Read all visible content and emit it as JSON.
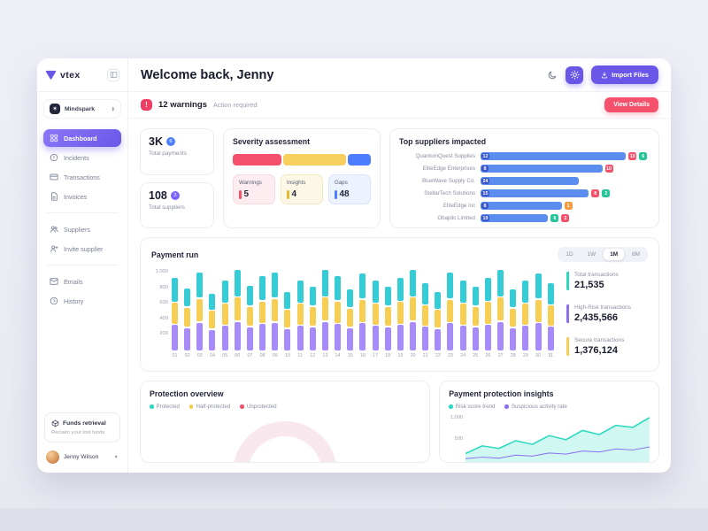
{
  "sidebar": {
    "logo_text": "vtex",
    "workspace": "Mindspark",
    "nav": [
      {
        "label": "Dashboard",
        "icon": "grid-icon",
        "active": true,
        "divider_after": false
      },
      {
        "label": "Incidents",
        "icon": "alert-icon",
        "active": false,
        "divider_after": false
      },
      {
        "label": "Transactions",
        "icon": "card-icon",
        "active": false,
        "divider_after": false
      },
      {
        "label": "Invoices",
        "icon": "file-icon",
        "active": false,
        "divider_after": true
      },
      {
        "label": "Suppliers",
        "icon": "users-icon",
        "active": false,
        "divider_after": false
      },
      {
        "label": "Invite supplier",
        "icon": "user-plus-icon",
        "active": false,
        "divider_after": true
      },
      {
        "label": "Emails",
        "icon": "mail-icon",
        "active": false,
        "divider_after": false
      },
      {
        "label": "History",
        "icon": "clock-icon",
        "active": false,
        "divider_after": false
      }
    ],
    "funds_title": "Funds retrieval",
    "funds_subtitle": "Reclaim your lost funds",
    "user_name": "Jenny Wilson"
  },
  "header": {
    "title": "Welcome back, Jenny",
    "import_label": "Import Files"
  },
  "alert_bar": {
    "warning_count": "12 warnings",
    "action_text": "Action required",
    "details_label": "View Details"
  },
  "stats": [
    {
      "value": "3K",
      "badge": "6",
      "badge_color": "#4d7cfe",
      "label": "Total payments"
    },
    {
      "value": "108",
      "badge": "3",
      "badge_color": "#7b61ff",
      "label": "Total suppliers"
    }
  ],
  "severity": {
    "title": "Severity assessment",
    "bar_segments": [
      {
        "color": "#f4516c",
        "pct": 36
      },
      {
        "color": "#f6cf5d",
        "pct": 47
      },
      {
        "color": "#4d7cfe",
        "pct": 17
      }
    ],
    "items": [
      {
        "label": "Warnings",
        "value": "5",
        "bg": "#fdedf1",
        "border": "#f8d9e1",
        "accent": "#f4516c"
      },
      {
        "label": "Insights",
        "value": "4",
        "bg": "#fdf7e5",
        "border": "#f3e7c2",
        "accent": "#e8b931"
      },
      {
        "label": "Gaps",
        "value": "48",
        "bg": "#edf3fe",
        "border": "#d8e4fb",
        "accent": "#4d7cfe"
      }
    ]
  },
  "top_suppliers": {
    "title": "Top suppliers impacted",
    "rows": [
      {
        "name": "QuantumQuest Supplies",
        "count": "12",
        "bar_pct": 86,
        "badges": [
          {
            "text": "10",
            "color": "#f4516c"
          },
          {
            "text": "6",
            "color": "#27c499"
          }
        ]
      },
      {
        "name": "EliteEdge Enterprises",
        "count": "8",
        "bar_pct": 72,
        "badges": [
          {
            "text": "10",
            "color": "#f4516c"
          }
        ]
      },
      {
        "name": "BlueWave Supply Co.",
        "count": "24",
        "bar_pct": 58,
        "badges": []
      },
      {
        "name": "StellarTech Solutions",
        "count": "15",
        "bar_pct": 64,
        "badges": [
          {
            "text": "8",
            "color": "#f4516c"
          },
          {
            "text": "2",
            "color": "#27c499"
          }
        ]
      },
      {
        "name": "EliteEdge inc",
        "count": "8",
        "bar_pct": 48,
        "badges": [
          {
            "text": "1",
            "color": "#f59a3d"
          }
        ]
      },
      {
        "name": "Obaplic Limited",
        "count": "19",
        "bar_pct": 40,
        "badges": [
          {
            "text": "6",
            "color": "#27c499"
          },
          {
            "text": "2",
            "color": "#f4516c"
          }
        ]
      }
    ]
  },
  "payment_run": {
    "title": "Payment run",
    "ranges": [
      "1D",
      "1W",
      "1M",
      "6M"
    ],
    "active_range": "1M",
    "summary": [
      {
        "label": "Total transactions",
        "value": "21,535",
        "color": "#2bd9c1"
      },
      {
        "label": "High-Risk transactions",
        "value": "2,435,566",
        "color": "#8a6ff0"
      },
      {
        "label": "Secure transactions",
        "value": "1,376,124",
        "color": "#f5ce53"
      }
    ]
  },
  "chart_data": [
    {
      "type": "bar",
      "stacked": true,
      "title": "Payment run",
      "categories": [
        "01",
        "02",
        "03",
        "04",
        "05",
        "06",
        "07",
        "08",
        "09",
        "10",
        "11",
        "12",
        "13",
        "14",
        "15",
        "16",
        "17",
        "18",
        "19",
        "20",
        "21",
        "22",
        "23",
        "24",
        "25",
        "26",
        "27",
        "28",
        "29",
        "30",
        "31"
      ],
      "series": [
        {
          "name": "base",
          "color": "#a78bfa",
          "values": [
            320,
            280,
            350,
            260,
            310,
            360,
            290,
            330,
            350,
            270,
            310,
            290,
            360,
            330,
            280,
            340,
            310,
            290,
            320,
            360,
            300,
            270,
            340,
            310,
            290,
            320,
            360,
            280,
            310,
            340,
            300
          ]
        },
        {
          "name": "mid",
          "color": "#f5ce53",
          "values": [
            260,
            240,
            280,
            220,
            260,
            290,
            240,
            270,
            280,
            220,
            260,
            240,
            290,
            270,
            230,
            280,
            260,
            240,
            270,
            290,
            250,
            220,
            280,
            260,
            240,
            270,
            290,
            230,
            260,
            280,
            250
          ]
        },
        {
          "name": "top",
          "color": "#35ccd6",
          "values": [
            300,
            230,
            320,
            200,
            280,
            330,
            250,
            300,
            320,
            210,
            270,
            240,
            330,
            300,
            220,
            310,
            280,
            240,
            290,
            330,
            260,
            210,
            320,
            280,
            240,
            290,
            330,
            220,
            270,
            310,
            260
          ]
        }
      ],
      "ylim": [
        0,
        1000
      ],
      "yticks": [
        "1,000",
        "800",
        "600",
        "400",
        "200"
      ],
      "legend_position": "none",
      "grid": false
    },
    {
      "type": "area",
      "title": "Payment protection insights",
      "x": [
        1,
        2,
        3,
        4,
        5,
        6,
        7,
        8,
        9,
        10,
        11,
        12
      ],
      "series": [
        {
          "name": "Risk score trend",
          "color": "#2bd9c1",
          "values": [
            250,
            400,
            350,
            500,
            430,
            600,
            520,
            700,
            620,
            800,
            760,
            950
          ]
        },
        {
          "name": "Suspicious activity rate",
          "color": "#8a6ff0",
          "values": [
            150,
            180,
            160,
            220,
            200,
            260,
            240,
            300,
            280,
            340,
            320,
            380
          ]
        }
      ],
      "ylim": [
        0,
        1000
      ],
      "yticks": [
        "1,000",
        "500"
      ],
      "legend_position": "top",
      "grid": false
    }
  ],
  "protection": {
    "title": "Protection overview",
    "legend": [
      {
        "label": "Protected",
        "color": "#2bd9c1"
      },
      {
        "label": "Half-protected",
        "color": "#f5ce53"
      },
      {
        "label": "Unprotected",
        "color": "#f4516c"
      }
    ],
    "ring_color": "#f8e8ee"
  },
  "insights": {
    "title": "Payment protection insights",
    "legend": [
      {
        "label": "Risk score trend",
        "color": "#2bd9c1"
      },
      {
        "label": "Suspicious activity rate",
        "color": "#8a6ff0"
      }
    ]
  },
  "colors": {
    "accent_purple": "#6a57e8",
    "alert_red": "#f4516c",
    "supplier_bar_blue": "#5b8def"
  }
}
